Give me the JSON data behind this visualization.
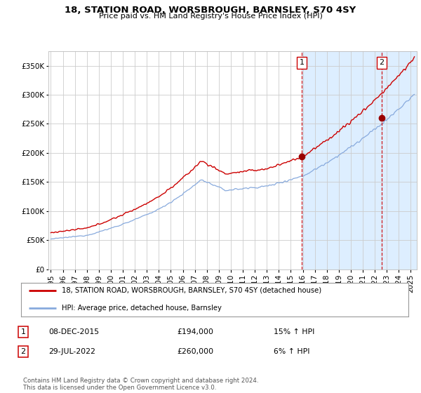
{
  "title": "18, STATION ROAD, WORSBROUGH, BARNSLEY, S70 4SY",
  "subtitle": "Price paid vs. HM Land Registry's House Price Index (HPI)",
  "yticks": [
    0,
    50000,
    100000,
    150000,
    200000,
    250000,
    300000,
    350000
  ],
  "ylim": [
    0,
    375000
  ],
  "sale1": {
    "date_num": 2015.92,
    "price": 194000,
    "label": "1",
    "text": "08-DEC-2015",
    "amount": "£194,000",
    "pct": "15% ↑ HPI"
  },
  "sale2": {
    "date_num": 2022.58,
    "price": 260000,
    "label": "2",
    "text": "29-JUL-2022",
    "amount": "£260,000",
    "pct": "6% ↑ HPI"
  },
  "legend_line1": "18, STATION ROAD, WORSBROUGH, BARNSLEY, S70 4SY (detached house)",
  "legend_line2": "HPI: Average price, detached house, Barnsley",
  "footer": "Contains HM Land Registry data © Crown copyright and database right 2024.\nThis data is licensed under the Open Government Licence v3.0.",
  "line_color_red": "#cc0000",
  "line_color_blue": "#88aadd",
  "shade_color": "#ddeeff",
  "vline_color": "#cc0000",
  "sale_marker_color": "#990000",
  "background_color": "#ffffff",
  "grid_color": "#cccccc",
  "border_color": "#cc0000",
  "xmin": 1994.8,
  "xmax": 2025.5,
  "shade_start": 2015.92
}
